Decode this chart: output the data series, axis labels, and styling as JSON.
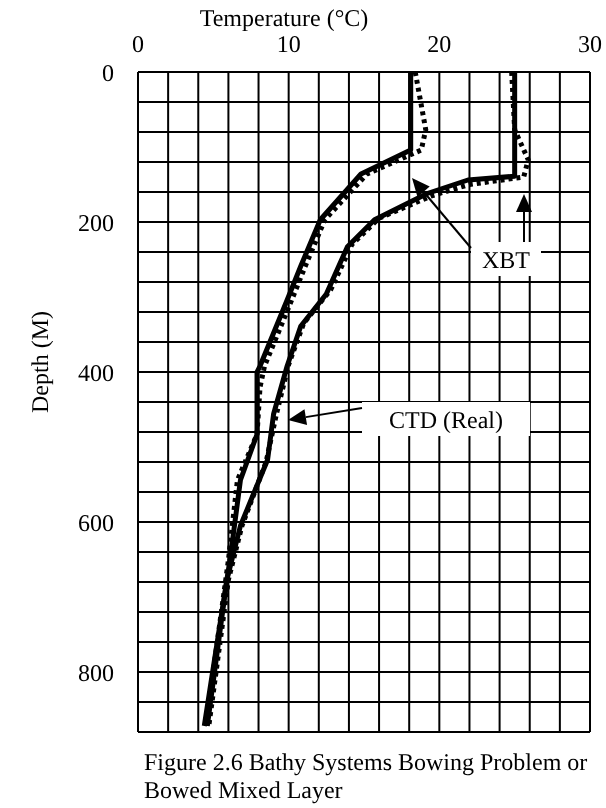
{
  "chart_data": {
    "type": "line",
    "xlabel": "Temperature (°C)",
    "ylabel": "Depth (M)",
    "xlim": [
      0,
      30
    ],
    "xticks": [
      0,
      {
        "value": 2,
        "label": null
      },
      {
        "value": 4,
        "label": null
      },
      {
        "value": 6,
        "label": null
      },
      {
        "value": 8,
        "label": null
      },
      10,
      {
        "value": 12,
        "label": null
      },
      {
        "value": 14,
        "label": null
      },
      {
        "value": 16,
        "label": null
      },
      {
        "value": 18,
        "label": null
      },
      20,
      {
        "value": 22,
        "label": null
      },
      {
        "value": 24,
        "label": null
      },
      {
        "value": 26,
        "label": null
      },
      {
        "value": 28,
        "label": null
      },
      30
    ],
    "ylim": [
      880,
      0
    ],
    "yticks": [
      0,
      {
        "value": 40,
        "label": null
      },
      {
        "value": 80,
        "label": null
      },
      {
        "value": 120,
        "label": null
      },
      {
        "value": 160,
        "label": null
      },
      200,
      {
        "value": 240,
        "label": null
      },
      {
        "value": 280,
        "label": null
      },
      {
        "value": 320,
        "label": null
      },
      {
        "value": 360,
        "label": null
      },
      400,
      {
        "value": 440,
        "label": null
      },
      {
        "value": 480,
        "label": null
      },
      {
        "value": 520,
        "label": null
      },
      {
        "value": 560,
        "label": null
      },
      600,
      {
        "value": 640,
        "label": null
      },
      {
        "value": 680,
        "label": null
      },
      {
        "value": 720,
        "label": null
      },
      {
        "value": 760,
        "label": null
      },
      800,
      {
        "value": 840,
        "label": null
      },
      {
        "value": 880,
        "label": null
      }
    ],
    "grid": true,
    "marker": "none",
    "series": [
      {
        "color": "#000000",
        "line_style": "solid",
        "x": [
          25,
          25,
          21.9,
          19.2,
          15.7,
          13.9,
          12.5,
          10.8,
          9.9,
          9,
          8.6,
          6.8,
          5.9,
          4.6
        ],
        "values": [
          0,
          139,
          144,
          162,
          197,
          233,
          296,
          339,
          392,
          456,
          517,
          605,
          677,
          872
        ]
      },
      {
        "color": "#000000",
        "line_style": "dotted",
        "x": [
          24.8,
          25,
          25.9,
          25.6,
          22,
          19.5,
          16,
          14.2,
          12.8,
          11,
          10,
          9.2,
          8.5,
          6.9,
          6,
          4.7
        ],
        "values": [
          0,
          77,
          117,
          140,
          150,
          165,
          195,
          230,
          290,
          335,
          390,
          455,
          520,
          605,
          677,
          872
        ]
      },
      {
        "color": "#000000",
        "line_style": "solid",
        "x": [
          18.1,
          18.1,
          14.8,
          12.1,
          10.8,
          9.9,
          8.1,
          7.9,
          7.9,
          6.8,
          6.1,
          4.4
        ],
        "values": [
          0,
          104,
          136,
          197,
          259,
          304,
          392,
          400,
          483,
          544,
          651,
          872
        ]
      },
      {
        "color": "#000000",
        "line_style": "dotted",
        "x": [
          18.4,
          19.1,
          18.8,
          15.2,
          12.4,
          11.1,
          10.2,
          8.4,
          8.1,
          7.9,
          6.6,
          6,
          4.5
        ],
        "values": [
          0,
          77,
          104,
          136,
          197,
          259,
          304,
          392,
          420,
          483,
          544,
          651,
          872
        ]
      }
    ],
    "annotations": [
      "XBT",
      "CTD (Real)",
      "Figure 2.6 Bathy Systems Bowing Problem or Bowed Mixed Layer"
    ]
  }
}
